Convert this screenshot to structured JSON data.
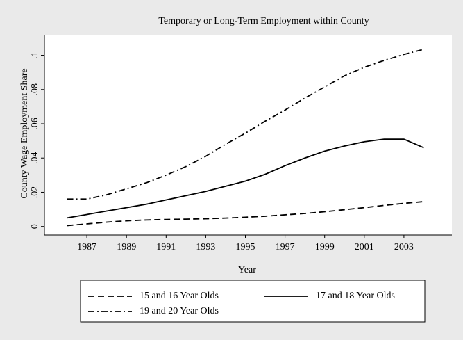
{
  "chart_data": {
    "type": "line",
    "title": "Temporary or Long-Term Employment within County",
    "x_label": "Year",
    "y_label": "County Wage Employment Share",
    "x": [
      1986,
      1987,
      1988,
      1989,
      1990,
      1991,
      1992,
      1993,
      1994,
      1995,
      1996,
      1997,
      1998,
      1999,
      2000,
      2001,
      2002,
      2003,
      2004
    ],
    "series": [
      {
        "name": "15 and 16 Year Olds",
        "color": "#000000",
        "dash": "dashed",
        "values": [
          0.0005,
          0.0015,
          0.0025,
          0.0033,
          0.0038,
          0.0041,
          0.0043,
          0.0045,
          0.0049,
          0.0054,
          0.006,
          0.0068,
          0.0076,
          0.0086,
          0.0098,
          0.011,
          0.0123,
          0.0135,
          0.0145
        ]
      },
      {
        "name": "17 and 18 Year Olds",
        "color": "#000000",
        "dash": "solid",
        "values": [
          0.005,
          0.007,
          0.009,
          0.011,
          0.013,
          0.0155,
          0.018,
          0.0205,
          0.0235,
          0.0265,
          0.0305,
          0.0355,
          0.04,
          0.044,
          0.047,
          0.0495,
          0.051,
          0.051,
          0.046
        ]
      },
      {
        "name": "19 and 20 Year Olds",
        "color": "#000000",
        "dash": "dashdot",
        "values": [
          0.016,
          0.016,
          0.0185,
          0.022,
          0.0255,
          0.03,
          0.035,
          0.041,
          0.048,
          0.0545,
          0.0615,
          0.068,
          0.075,
          0.0815,
          0.088,
          0.093,
          0.097,
          0.1005,
          0.1035
        ]
      }
    ],
    "xlim": [
      1984.86,
      2005.42
    ],
    "xticks": [
      1987,
      1989,
      1991,
      1993,
      1995,
      1997,
      1999,
      2001,
      2003
    ],
    "ylim": [
      -0.005,
      0.112
    ],
    "yticks": [
      0,
      {
        "value": 0.02,
        "label": ".02"
      },
      {
        "value": 0.04,
        "label": ".04"
      },
      {
        "value": 0.06,
        "label": ".06"
      },
      {
        "value": 0.08,
        "label": ".08"
      },
      {
        "value": 0.1,
        "label": ".1"
      }
    ],
    "grid": false,
    "legend_position": "bottom"
  }
}
